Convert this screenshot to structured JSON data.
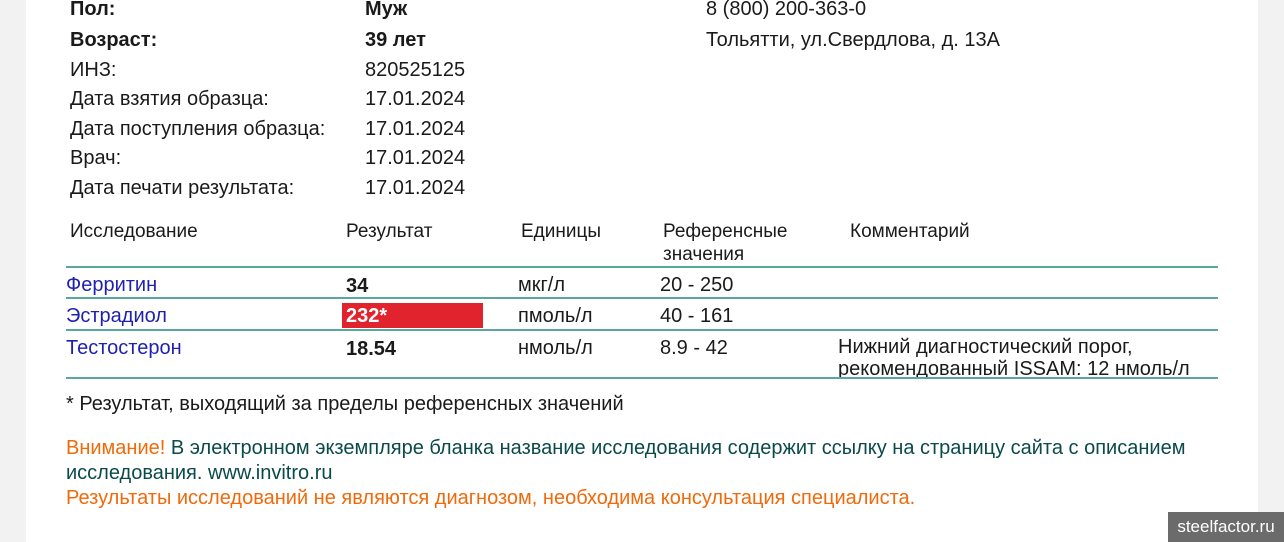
{
  "patient": {
    "rows": [
      {
        "label": "Пол:",
        "value": "Муж"
      },
      {
        "label": "Возраст:",
        "value": "39 лет"
      },
      {
        "label": "ИНЗ:",
        "value": "820525125"
      },
      {
        "label": "Дата взятия образца:",
        "value": "17.01.2024"
      },
      {
        "label": "Дата поступления образца:",
        "value": "17.01.2024"
      },
      {
        "label": "Врач:",
        "value": "17.01.2024"
      },
      {
        "label": "Дата печати результата:",
        "value": "17.01.2024"
      }
    ]
  },
  "contact": {
    "phone": "8 (800) 200-363-0",
    "address": "Тольятти, ул.Свердлова, д. 13А"
  },
  "table": {
    "headers": {
      "test": "Исследование",
      "result": "Результат",
      "units": "Единицы",
      "ref_line1": "Референсные",
      "ref_line2": "значения",
      "comment": "Комментарий"
    },
    "rows": [
      {
        "test": "Ферритин",
        "result": "34",
        "units": "мкг/л",
        "ref": "20 - 250",
        "comment1": "",
        "comment2": "",
        "out_of_range": false
      },
      {
        "test": "Эстрадиол",
        "result": "232*",
        "units": "пмоль/л",
        "ref": "40 - 161",
        "comment1": "",
        "comment2": "",
        "out_of_range": true
      },
      {
        "test": "Тестостерон",
        "result": "18.54",
        "units": "нмоль/л",
        "ref": "8.9 - 42",
        "comment1": "Нижний диагностический порог,",
        "comment2": "рекомендованный ISSAM: 12 нмоль/л",
        "out_of_range": false
      }
    ]
  },
  "footnote": "* Результат, выходящий за пределы референсных значений",
  "notice": {
    "attention": "Внимание!",
    "text1": " В электронном экземпляре бланка название исследования содержит ссылку на страницу сайта с описанием",
    "text2": "исследования. www.invitro.ru",
    "disclaimer": "Результаты исследований не являются диагнозом, необходима консультация специалиста."
  },
  "watermark": "steelfactor.ru",
  "colors": {
    "highlight": "#e0232c",
    "link": "#1f1fb0",
    "divider": "#5aa6a0",
    "warning": "#f06a0a"
  }
}
